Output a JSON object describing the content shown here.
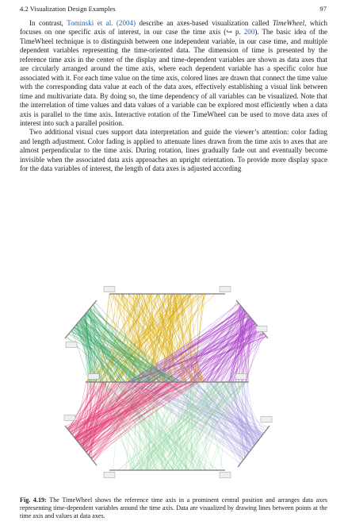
{
  "header": {
    "section": "4.2 Visualization Design Examples",
    "page_number": "97"
  },
  "body": {
    "p1_lead": "In contrast, ",
    "p1_cite": "Tominski et al. (2004)",
    "p1_a": " describe an axes-based visualization called ",
    "p1_term": "TimeWheel",
    "p1_b": ", which focuses on one specific axis of interest, in our case the time axis (↪ p. ",
    "p1_pref": "200",
    "p1_c": "). The basic idea of the TimeWheel technique is to distinguish between one independent variable, in our case time, and multiple dependent variables representing the time-oriented data. The dimension of time is presented by the reference time axis in the center of the display and time-dependent variables are shown as data axes that are circularly arranged around the time axis, where each dependent variable has a specific color hue associated with it. For each time value on the time axis, colored lines are drawn that connect the time value with the corresponding data value at each of the data axes, effectively establishing a visual link between time and multivariate data. By doing so, the time dependency of all variables can be visualized. Note that the interrelation of time values and data values of a variable can be explored most efficiently when a data axis is parallel to the time axis. Interactive rotation of the TimeWheel can be used to move data axes of interest into such a parallel position.",
    "p2": "Two additional visual cues support data interpretation and guide the viewer’s attention: color fading and length adjustment. Color fading is applied to attenuate lines drawn from the time axis to axes that are almost perpendicular to the time axis. During rotation, lines gradually fade out and eventually become invisible when the associated data axis approaches an upright orientation. To provide more display space for the data variables of interest, the length of data axes is adjusted according"
  },
  "figure": {
    "colors": {
      "gold": "#d8a800",
      "purple": "#a83ec8",
      "pink": "#e0306a",
      "green": "#3aa86a",
      "light_green": "#7ecf8e",
      "lavender": "#9f90dc",
      "axis": "#7a7a7a"
    }
  },
  "caption": {
    "label": "Fig. 4.19:",
    "text": " The TimeWheel shows the reference time axis in a prominent central position and arranges data axes representing time-dependent variables around the time axis. Data are visualized by drawing lines between points at the time axis and values at data axes."
  }
}
